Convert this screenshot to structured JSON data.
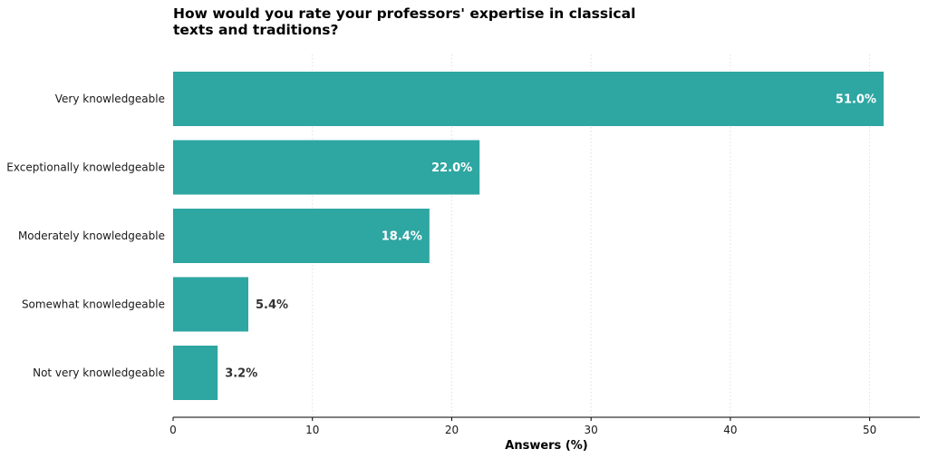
{
  "chart_data": {
    "type": "bar",
    "orientation": "horizontal",
    "title": "How would you rate your professors' expertise in classical texts and traditions?",
    "xlabel": "Answers (%)",
    "ylabel": "",
    "categories": [
      "Very knowledgeable",
      "Exceptionally knowledgeable",
      "Moderately knowledgeable",
      "Somewhat knowledgeable",
      "Not very knowledgeable"
    ],
    "values": [
      51.0,
      22.0,
      18.4,
      5.4,
      3.2
    ],
    "value_labels": [
      "51.0%",
      "22.0%",
      "18.4%",
      "5.4%",
      "3.2%"
    ],
    "xlim": [
      0,
      53.6
    ],
    "xticks": [
      0,
      10,
      20,
      30,
      40,
      50
    ],
    "xtick_labels": [
      "0",
      "10",
      "20",
      "30",
      "40",
      "50"
    ],
    "grid": "vertical dotted",
    "legend": "none",
    "colors": {
      "bar": "#2ea6a2",
      "label_inside": "#ffffff",
      "label_outside": "#333333",
      "grid": "#d9d9d9",
      "axis": "#000000"
    }
  }
}
